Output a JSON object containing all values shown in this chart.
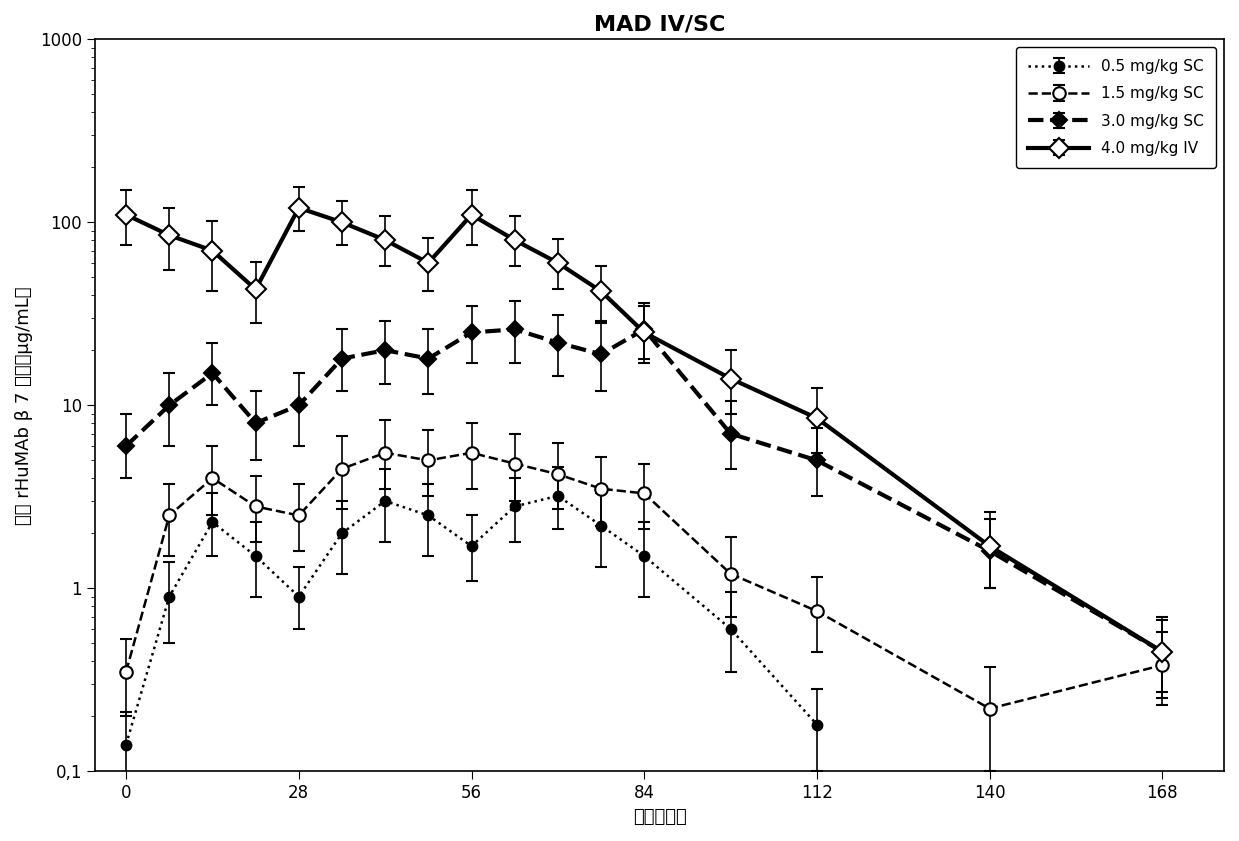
{
  "title": "MAD IV/SC",
  "xlabel": "时间（天）",
  "ylabel": "血清 rHuMAb β 7 浓度（μg/mL）",
  "xlim": [
    -5,
    178
  ],
  "ylim": [
    0.1,
    1000
  ],
  "xticks": [
    0,
    28,
    56,
    84,
    112,
    140,
    168
  ],
  "series": [
    {
      "label": "0.5 mg/kg SC",
      "x": [
        0,
        7,
        14,
        21,
        28,
        35,
        42,
        49,
        56,
        63,
        70,
        77,
        84,
        98,
        112
      ],
      "y": [
        0.14,
        0.9,
        2.3,
        1.5,
        0.9,
        2.0,
        3.0,
        2.5,
        1.7,
        2.8,
        3.2,
        2.2,
        1.5,
        0.6,
        0.18
      ],
      "yerr_lo": [
        0.06,
        0.4,
        0.8,
        0.6,
        0.3,
        0.8,
        1.2,
        1.0,
        0.6,
        1.0,
        1.1,
        0.9,
        0.6,
        0.25,
        0.08
      ],
      "yerr_hi": [
        0.07,
        0.5,
        1.0,
        0.8,
        0.4,
        1.0,
        1.5,
        1.2,
        0.8,
        1.2,
        1.4,
        1.1,
        0.8,
        0.35,
        0.1
      ],
      "color": "#000000",
      "linestyle": "dotted",
      "linewidth": 1.8,
      "marker": "o",
      "markersize": 7,
      "markerfacecolor": "#000000",
      "markeredgecolor": "#000000"
    },
    {
      "label": "1.5 mg/kg SC",
      "x": [
        0,
        7,
        14,
        21,
        28,
        35,
        42,
        49,
        56,
        63,
        70,
        77,
        84,
        98,
        112,
        140,
        168
      ],
      "y": [
        0.35,
        2.5,
        4.0,
        2.8,
        2.5,
        4.5,
        5.5,
        5.0,
        5.5,
        4.8,
        4.2,
        3.5,
        3.3,
        1.2,
        0.75,
        0.22,
        0.38
      ],
      "yerr_lo": [
        0.15,
        1.0,
        1.5,
        1.0,
        0.9,
        1.8,
        2.0,
        1.8,
        2.0,
        1.8,
        1.5,
        1.3,
        1.2,
        0.5,
        0.3,
        0.12,
        0.15
      ],
      "yerr_hi": [
        0.18,
        1.2,
        2.0,
        1.3,
        1.2,
        2.3,
        2.8,
        2.3,
        2.5,
        2.2,
        2.0,
        1.7,
        1.5,
        0.7,
        0.4,
        0.15,
        0.2
      ],
      "color": "#000000",
      "linestyle": "dashed",
      "linewidth": 1.8,
      "marker": "o",
      "markersize": 9,
      "markerfacecolor": "#ffffff",
      "markeredgecolor": "#000000"
    },
    {
      "label": "3.0 mg/kg SC",
      "x": [
        0,
        7,
        14,
        21,
        28,
        35,
        42,
        49,
        56,
        63,
        70,
        77,
        84,
        98,
        112,
        140,
        168
      ],
      "y": [
        6.0,
        10.0,
        15.0,
        8.0,
        10.0,
        18.0,
        20.0,
        18.0,
        25.0,
        26.0,
        22.0,
        19.0,
        26.0,
        7.0,
        5.0,
        1.6,
        0.45
      ],
      "yerr_lo": [
        2.0,
        4.0,
        5.0,
        3.0,
        4.0,
        6.0,
        7.0,
        6.5,
        8.0,
        9.0,
        7.5,
        7.0,
        8.0,
        2.5,
        1.8,
        0.6,
        0.2
      ],
      "yerr_hi": [
        3.0,
        5.0,
        7.0,
        4.0,
        5.0,
        8.0,
        9.0,
        8.0,
        10.0,
        11.0,
        9.0,
        9.0,
        10.0,
        3.5,
        2.5,
        0.8,
        0.25
      ],
      "color": "#000000",
      "linestyle": "dashed",
      "linewidth": 3.0,
      "marker": "D",
      "markersize": 8,
      "markerfacecolor": "#000000",
      "markeredgecolor": "#000000"
    },
    {
      "label": "4.0 mg/kg IV",
      "x": [
        0,
        7,
        14,
        21,
        28,
        35,
        42,
        49,
        56,
        63,
        70,
        77,
        84,
        98,
        112,
        140,
        168
      ],
      "y": [
        110,
        85.0,
        70.0,
        43.0,
        120.0,
        100.0,
        80.0,
        60.0,
        110.0,
        80.0,
        60.0,
        42.0,
        25.0,
        14.0,
        8.5,
        1.7,
        0.45
      ],
      "yerr_lo": [
        35.0,
        30.0,
        28.0,
        15.0,
        30.0,
        25.0,
        22.0,
        18.0,
        35.0,
        22.0,
        17.0,
        13.0,
        8.0,
        5.0,
        3.0,
        0.7,
        0.18
      ],
      "yerr_hi": [
        40.0,
        35.0,
        32.0,
        18.0,
        35.0,
        30.0,
        28.0,
        22.0,
        40.0,
        28.0,
        21.0,
        16.0,
        10.0,
        6.0,
        4.0,
        0.9,
        0.22
      ],
      "color": "#000000",
      "linestyle": "solid",
      "linewidth": 3.0,
      "marker": "D",
      "markersize": 10,
      "markerfacecolor": "#ffffff",
      "markeredgecolor": "#000000"
    }
  ],
  "background_color": "#ffffff",
  "legend_loc": "upper right",
  "title_fontsize": 16,
  "label_fontsize": 13,
  "tick_fontsize": 12
}
